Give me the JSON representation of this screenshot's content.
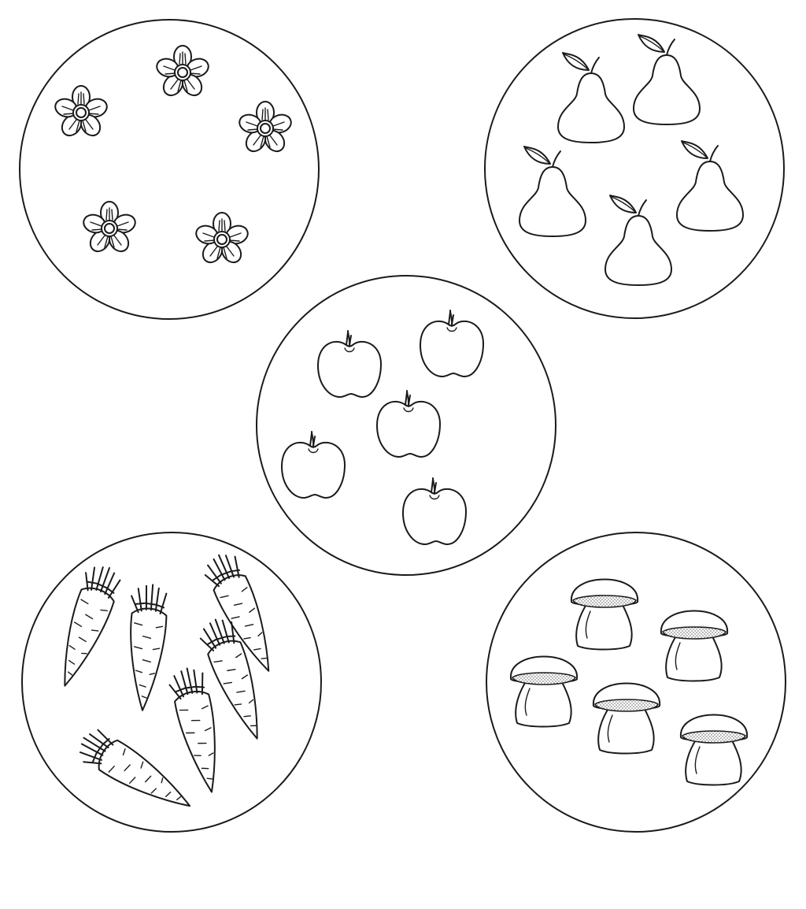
{
  "worksheet": {
    "background_color": "#ffffff",
    "ink_color": "#1a1a1a",
    "groups": [
      {
        "name": "flowers",
        "icon": "flower-icon",
        "count": 5
      },
      {
        "name": "pears",
        "icon": "pear-icon",
        "count": 5
      },
      {
        "name": "apples",
        "icon": "apple-icon",
        "count": 5
      },
      {
        "name": "carrots",
        "icon": "carrot-icon",
        "count": 6
      },
      {
        "name": "mushrooms",
        "icon": "mushroom-icon",
        "count": 5
      }
    ]
  }
}
